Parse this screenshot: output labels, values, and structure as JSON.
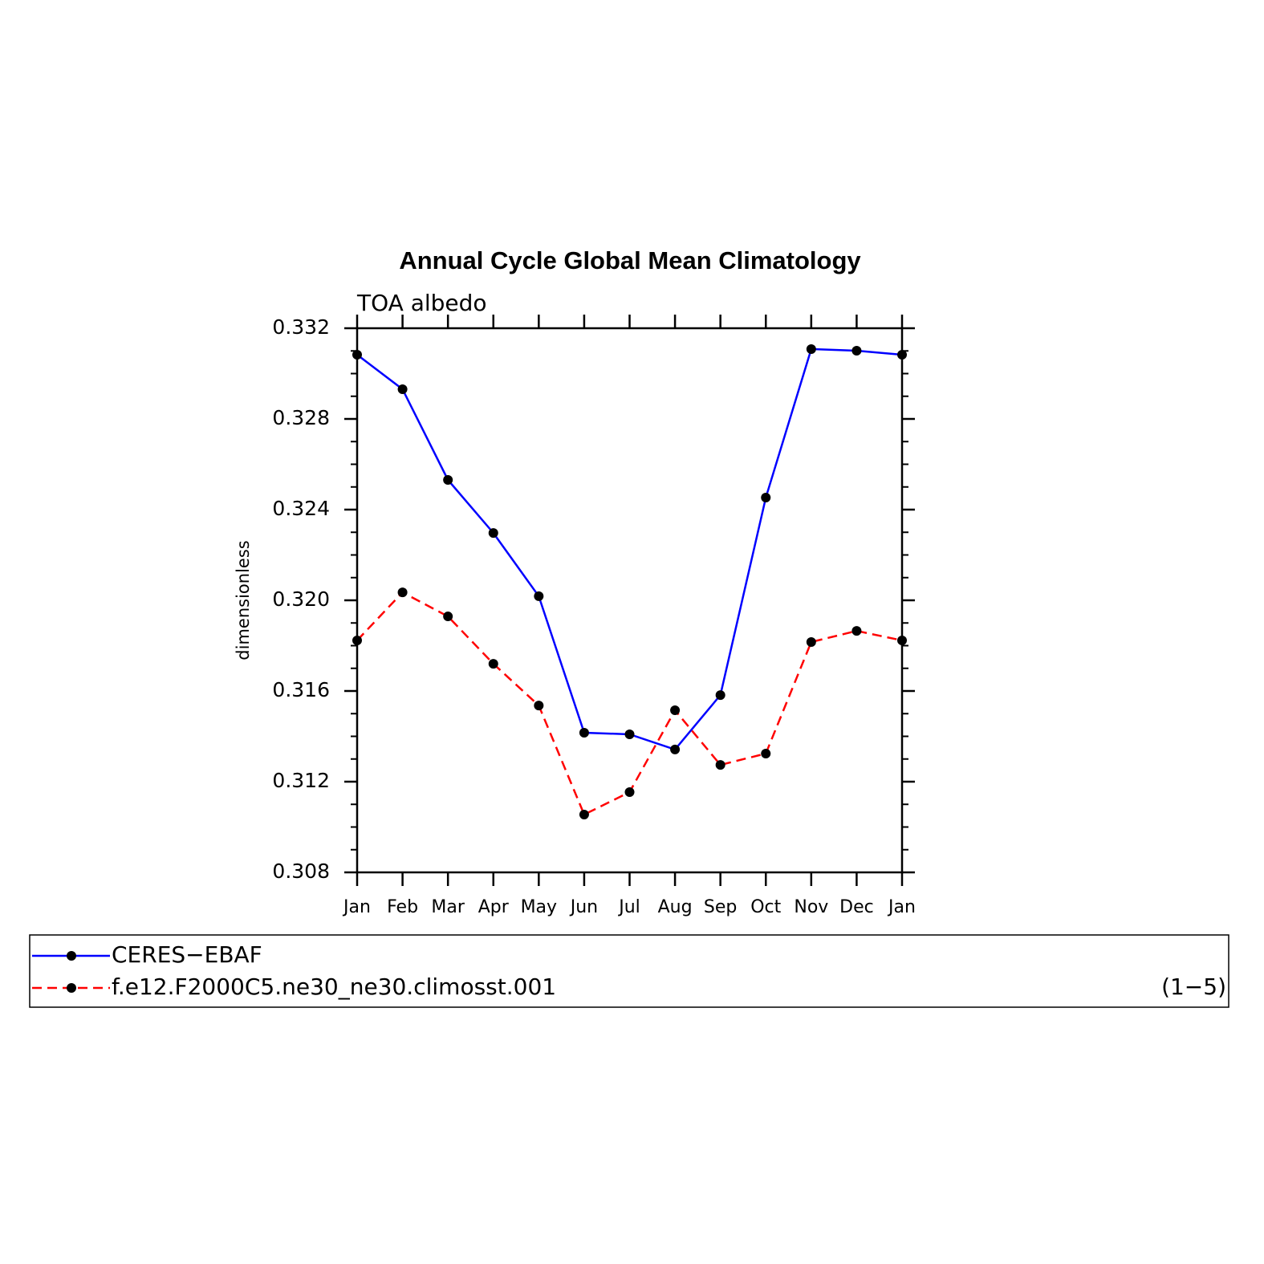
{
  "chart_data": {
    "type": "line",
    "title": "Annual Cycle Global Mean Climatology",
    "subtitle": "TOA albedo",
    "y_label": "dimensionless",
    "categories": [
      "Jan",
      "Feb",
      "Mar",
      "Apr",
      "May",
      "Jun",
      "Jul",
      "Aug",
      "Sep",
      "Oct",
      "Nov",
      "Dec",
      "Jan"
    ],
    "series": [
      {
        "name": "CERES−EBAF",
        "color": "#0000ff",
        "dash": false,
        "values": [
          0.33083,
          0.32931,
          0.32531,
          0.32297,
          0.32018,
          0.31416,
          0.31409,
          0.31342,
          0.31582,
          0.32453,
          0.33108,
          0.33101,
          0.33083
        ]
      },
      {
        "name": "f.e12.F2000C5.ne30_ne30.climosst.001",
        "color": "#ff0000",
        "dash": true,
        "values": [
          0.31823,
          0.32035,
          0.31929,
          0.3172,
          0.31536,
          0.31055,
          0.31154,
          0.31515,
          0.31274,
          0.31324,
          0.31816,
          0.31865,
          0.31823
        ]
      }
    ],
    "ylim": [
      0.308,
      0.332
    ],
    "yticks": [
      0.308,
      0.312,
      0.316,
      {
        "value": 0.32,
        "label": "0.320"
      },
      0.324,
      0.328,
      0.332
    ],
    "legend_note": "(1−5)"
  }
}
